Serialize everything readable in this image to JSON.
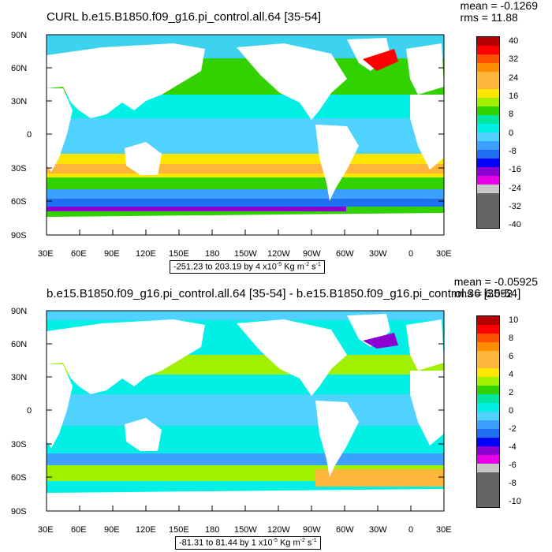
{
  "panels": [
    {
      "title": "CURL b.e15.B1850.f09_g16.pi_control.all.64 [35-54]",
      "mean": "mean = -0.1269",
      "rms": "rms = 11.88",
      "range_text": "-251.23 to 203.19 by 4 x10",
      "range_exp": "-5",
      "range_units": " Kg m",
      "range_units_exp": "-2",
      "range_tail": " s",
      "range_tail_exp": "-1",
      "colorbar_labels": [
        "40",
        "32",
        "24",
        "16",
        "8",
        "0",
        "-8",
        "-16",
        "-24",
        "-32",
        "-40"
      ]
    },
    {
      "title": "b.e15.B1850.f09_g16.pi_control.all.64 [35-54] - b.e15.B1850.f09_g16.pi_control.36 [35-54]",
      "mean": "mean = -0.05925",
      "rms": "rms = 6.052",
      "range_text": "-81.31 to 81.44 by 1 x10",
      "range_exp": "-5",
      "range_units": " Kg m",
      "range_units_exp": "-2",
      "range_tail": " s",
      "range_tail_exp": "-1",
      "colorbar_labels": [
        "10",
        "8",
        "6",
        "4",
        "2",
        "0",
        "-2",
        "-4",
        "-6",
        "-8",
        "-10"
      ]
    }
  ],
  "lat_labels": [
    "90N",
    "60N",
    "30N",
    "0",
    "30S",
    "60S",
    "90S"
  ],
  "lon_labels": [
    "30E",
    "60E",
    "90E",
    "120E",
    "150E",
    "180",
    "150W",
    "120W",
    "90W",
    "60W",
    "30W",
    "0",
    "30E"
  ],
  "colorbar_colors": [
    "#b40000",
    "#ff0000",
    "#ff5000",
    "#ff8c00",
    "#ffb43c",
    "#ffe600",
    "#a0f000",
    "#32d200",
    "#00e6a0",
    "#00f0e6",
    "#50d2ff",
    "#3ca0ff",
    "#1e6ef0",
    "#0000ff",
    "#8c00d2",
    "#e600e6",
    "#c8c8c8",
    "#646464"
  ],
  "colors": {
    "ocean_base": "#3cd2f0",
    "land": "#ffffff"
  }
}
